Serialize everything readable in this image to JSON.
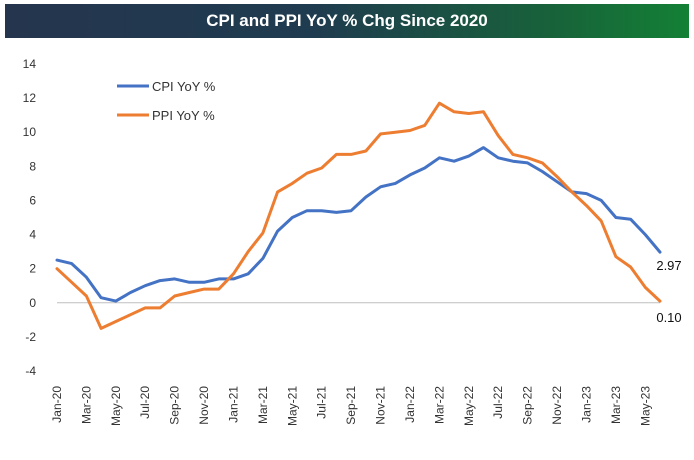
{
  "chart_data": {
    "type": "line",
    "title": "CPI and PPI YoY % Chg Since 2020",
    "ylim": [
      -4,
      14
    ],
    "yticks": [
      14,
      12,
      10,
      8,
      6,
      4,
      2,
      0,
      -2,
      -4
    ],
    "grid": false,
    "legend_position": "top-left",
    "x_tick_labels": [
      "Jan-20",
      "Mar-20",
      "May-20",
      "Jul-20",
      "Sep-20",
      "Nov-20",
      "Jan-21",
      "Mar-21",
      "May-21",
      "Jul-21",
      "Sep-21",
      "Nov-21",
      "Jan-22",
      "Mar-22",
      "May-22",
      "Jul-22",
      "Sep-22",
      "Nov-22",
      "Jan-23",
      "Mar-23",
      "May-23"
    ],
    "x": [
      "Jan-20",
      "Feb-20",
      "Mar-20",
      "Apr-20",
      "May-20",
      "Jun-20",
      "Jul-20",
      "Aug-20",
      "Sep-20",
      "Oct-20",
      "Nov-20",
      "Dec-20",
      "Jan-21",
      "Feb-21",
      "Mar-21",
      "Apr-21",
      "May-21",
      "Jun-21",
      "Jul-21",
      "Aug-21",
      "Sep-21",
      "Oct-21",
      "Nov-21",
      "Dec-21",
      "Jan-22",
      "Feb-22",
      "Mar-22",
      "Apr-22",
      "May-22",
      "Jun-22",
      "Jul-22",
      "Aug-22",
      "Sep-22",
      "Oct-22",
      "Nov-22",
      "Dec-22",
      "Jan-23",
      "Feb-23",
      "Mar-23",
      "Apr-23",
      "May-23",
      "Jun-23"
    ],
    "series": [
      {
        "name": "CPI YoY %",
        "color": "#4472c4",
        "values": [
          2.5,
          2.3,
          1.5,
          0.3,
          0.1,
          0.6,
          1.0,
          1.3,
          1.4,
          1.2,
          1.2,
          1.4,
          1.4,
          1.7,
          2.6,
          4.2,
          5.0,
          5.4,
          5.4,
          5.3,
          5.4,
          6.2,
          6.8,
          7.0,
          7.5,
          7.9,
          8.5,
          8.3,
          8.6,
          9.1,
          8.5,
          8.3,
          8.2,
          7.7,
          7.1,
          6.5,
          6.4,
          6.0,
          5.0,
          4.9,
          4.0,
          2.97
        ],
        "end_label": "2.97"
      },
      {
        "name": "PPI YoY %",
        "color": "#ed7d31",
        "values": [
          2.0,
          1.2,
          0.4,
          -1.5,
          -1.1,
          -0.7,
          -0.3,
          -0.3,
          0.4,
          0.6,
          0.8,
          0.8,
          1.7,
          3.0,
          4.1,
          6.5,
          7.0,
          7.6,
          7.9,
          8.7,
          8.7,
          8.9,
          9.9,
          10.0,
          10.1,
          10.4,
          11.7,
          11.2,
          11.1,
          11.2,
          9.8,
          8.7,
          8.5,
          8.2,
          7.4,
          6.5,
          5.7,
          4.8,
          2.7,
          2.1,
          0.9,
          0.1
        ],
        "end_label": "0.10"
      }
    ]
  }
}
